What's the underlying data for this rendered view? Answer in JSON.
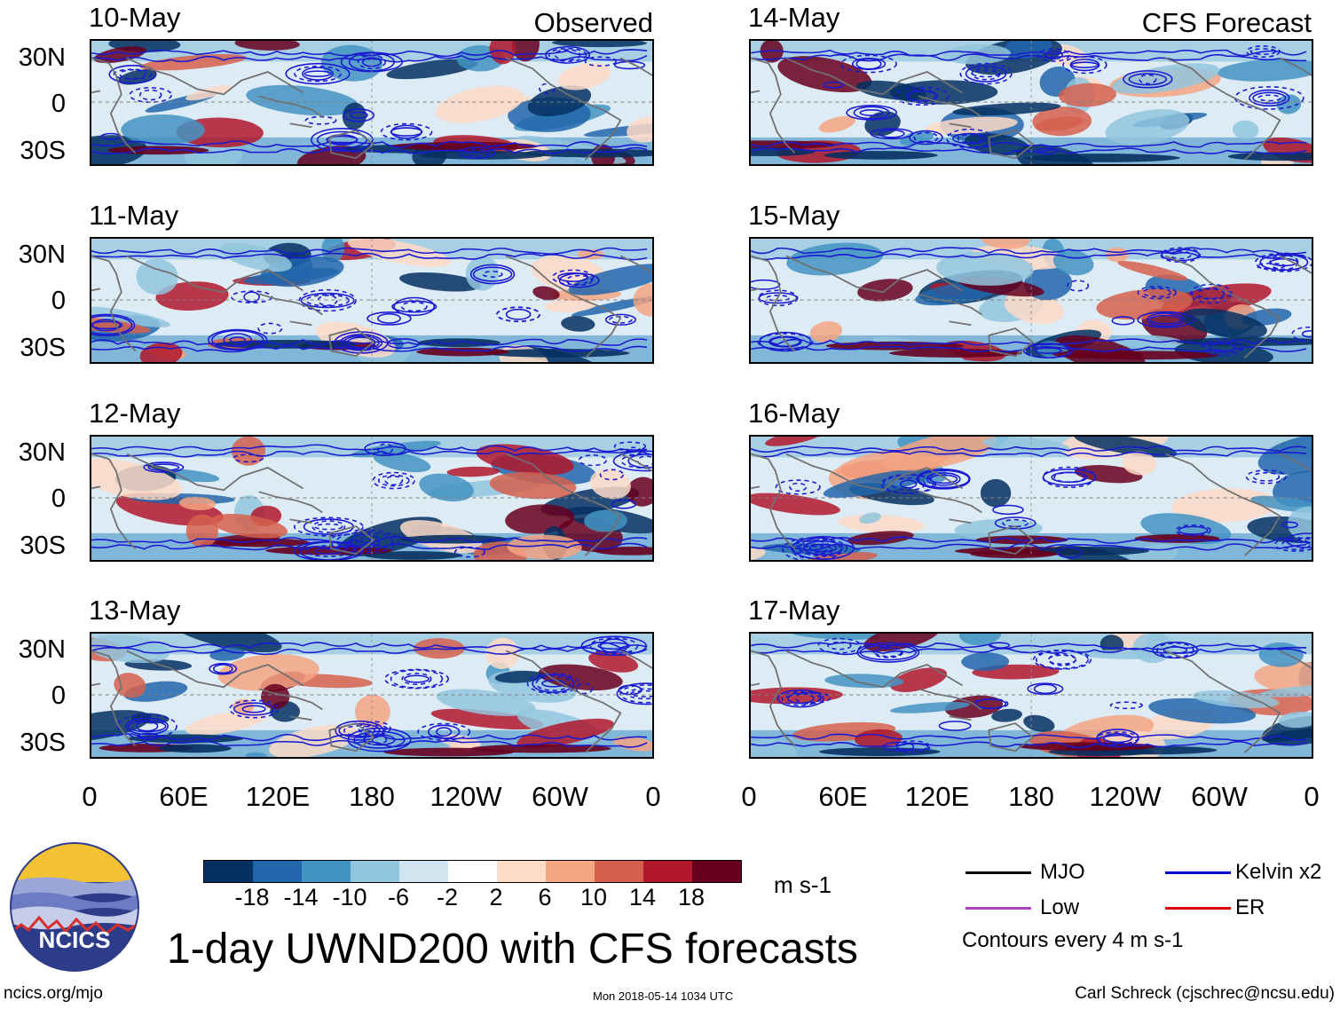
{
  "panel_tags": {
    "observed": "Observed",
    "forecast": "CFS Forecast"
  },
  "observed_dates": [
    "10-May",
    "11-May",
    "12-May",
    "13-May"
  ],
  "forecast_dates": [
    "14-May",
    "15-May",
    "16-May",
    "17-May"
  ],
  "lat_labels": [
    "30N",
    "0",
    "30S"
  ],
  "lon_labels": [
    "0",
    "60E",
    "120E",
    "180",
    "120W",
    "60W",
    "0"
  ],
  "colorbar": {
    "colors": [
      "#053061",
      "#2166ac",
      "#4393c3",
      "#92c5de",
      "#d1e5f0",
      "#ffffff",
      "#fddbc7",
      "#f4a582",
      "#d6604d",
      "#b2182b",
      "#67001f"
    ],
    "labels": [
      "-18",
      "-14",
      "-10",
      "-6",
      "-2",
      "2",
      "6",
      "10",
      "14",
      "18"
    ],
    "units": "m s-1"
  },
  "legend": {
    "mjo": "MJO",
    "kelvin": "Kelvin x2",
    "low": "Low",
    "er": "ER",
    "contour_note": "Contours every 4 m s-1",
    "colors": {
      "mjo": "#000000",
      "kelvin": "#0000cc",
      "low": "#b040c0",
      "er": "#dd0000"
    }
  },
  "logo": {
    "text": "NCICS"
  },
  "title": "1-day UWND200 with CFS forecasts",
  "footer": {
    "url": "ncics.org/mjo",
    "timestamp": "Mon 2018-05-14 1034 UTC",
    "credit": "Carl Schreck (cjschrec@ncsu.edu)"
  }
}
